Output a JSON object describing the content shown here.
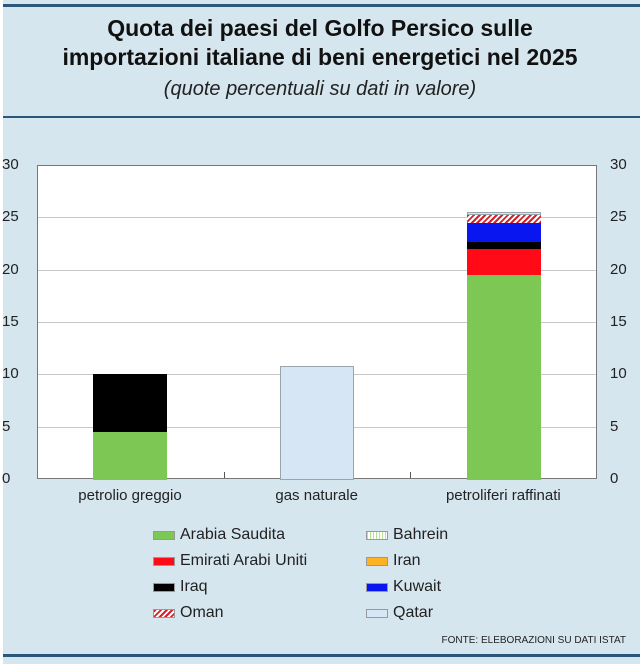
{
  "title_line1": "Quota dei paesi del Golfo Persico sulle",
  "title_line2": "importazioni italiane di beni energetici nel 2025",
  "subtitle": "(quote percentuali su dati in valore)",
  "source": "FONTE: ELEBORAZIONI SU DATI ISTAT",
  "yticks": [
    "0",
    "5",
    "10",
    "15",
    "20",
    "25",
    "30"
  ],
  "xlabels": [
    "petrolio greggio",
    "gas naturale",
    "petroliferi raffinati"
  ],
  "legend": [
    {
      "label": "Arabia Saudita",
      "color": "#7dc855",
      "pattern": "solid"
    },
    {
      "label": "Bahrein",
      "color": "#b9e08f",
      "pattern": "vertical-stripes"
    },
    {
      "label": "Emirati Arabi Uniti",
      "color": "#ff0a16",
      "pattern": "solid"
    },
    {
      "label": "Iran",
      "color": "#ffb224",
      "pattern": "solid"
    },
    {
      "label": "Iraq",
      "color": "#000000",
      "pattern": "solid"
    },
    {
      "label": "Kuwait",
      "color": "#0a16f0",
      "pattern": "solid"
    },
    {
      "label": "Oman",
      "color": "#d9202a",
      "pattern": "diagonal-stripes"
    },
    {
      "label": "Qatar",
      "color": "#d7e6f4",
      "pattern": "solid"
    }
  ],
  "chart_data": {
    "type": "bar",
    "stacked": true,
    "title": "Quota dei paesi del Golfo Persico sulle importazioni italiane di beni energetici nel 2025",
    "subtitle": "(quote percentuali su dati in valore)",
    "xlabel": "",
    "ylabel": "",
    "ylim": [
      0,
      30
    ],
    "yticks": [
      0,
      5,
      10,
      15,
      20,
      25,
      30
    ],
    "grid": true,
    "legend_position": "bottom",
    "categories": [
      "petrolio greggio",
      "gas naturale",
      "petroliferi raffinati"
    ],
    "series": [
      {
        "name": "Arabia Saudita",
        "color": "#7dc855",
        "values": [
          4.6,
          0,
          19.6
        ]
      },
      {
        "name": "Bahrein",
        "color": "#b9e08f",
        "values": [
          0,
          0,
          0
        ]
      },
      {
        "name": "Emirati Arabi Uniti",
        "color": "#ff0a16",
        "values": [
          0,
          0,
          2.5
        ]
      },
      {
        "name": "Iran",
        "color": "#ffb224",
        "values": [
          0,
          0,
          0
        ]
      },
      {
        "name": "Iraq",
        "color": "#000000",
        "values": [
          5.5,
          0,
          0.6
        ]
      },
      {
        "name": "Kuwait",
        "color": "#0a16f0",
        "values": [
          0,
          0,
          1.9
        ]
      },
      {
        "name": "Oman",
        "color": "#d9202a",
        "values": [
          0,
          0,
          0.7
        ]
      },
      {
        "name": "Qatar",
        "color": "#d7e6f4",
        "values": [
          0,
          10.9,
          0.3
        ]
      }
    ],
    "totals": [
      10.1,
      10.9,
      25.6
    ],
    "source": "FONTE: ELEBORAZIONI SU DATI ISTAT"
  }
}
